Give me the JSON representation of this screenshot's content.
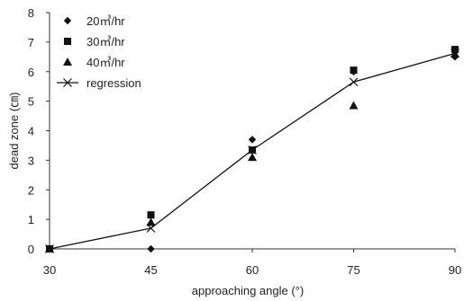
{
  "chart_data": {
    "type": "scatter",
    "xlabel": "approaching angle (°)",
    "ylabel": "dead zone (㎝)",
    "xticks": [
      30,
      45,
      60,
      75,
      90
    ],
    "yticks": [
      0,
      1,
      2,
      3,
      4,
      5,
      6,
      7,
      8
    ],
    "xlim": [
      30,
      90
    ],
    "ylim": [
      0,
      8
    ],
    "grid": false,
    "legend_position": "top-left",
    "series": [
      {
        "name": "20㎥/hr",
        "marker": "diamond",
        "color": "#111111",
        "x": [
          30,
          45,
          60,
          75,
          90
        ],
        "y": [
          0,
          0,
          3.7,
          6.0,
          6.5
        ]
      },
      {
        "name": "30㎥/hr",
        "marker": "square",
        "color": "#111111",
        "x": [
          30,
          45,
          60,
          75,
          90
        ],
        "y": [
          0,
          1.15,
          3.35,
          6.05,
          6.75
        ]
      },
      {
        "name": "40㎥/hr",
        "marker": "triangle",
        "color": "#111111",
        "x": [
          30,
          45,
          60,
          75,
          90
        ],
        "y": [
          0,
          0.9,
          3.1,
          4.85,
          6.6
        ]
      },
      {
        "name": "regression",
        "marker": "x",
        "line": true,
        "color": "#111111",
        "x": [
          30,
          45,
          60,
          75,
          90
        ],
        "y": [
          0,
          0.7,
          3.35,
          5.65,
          6.62
        ]
      }
    ]
  }
}
